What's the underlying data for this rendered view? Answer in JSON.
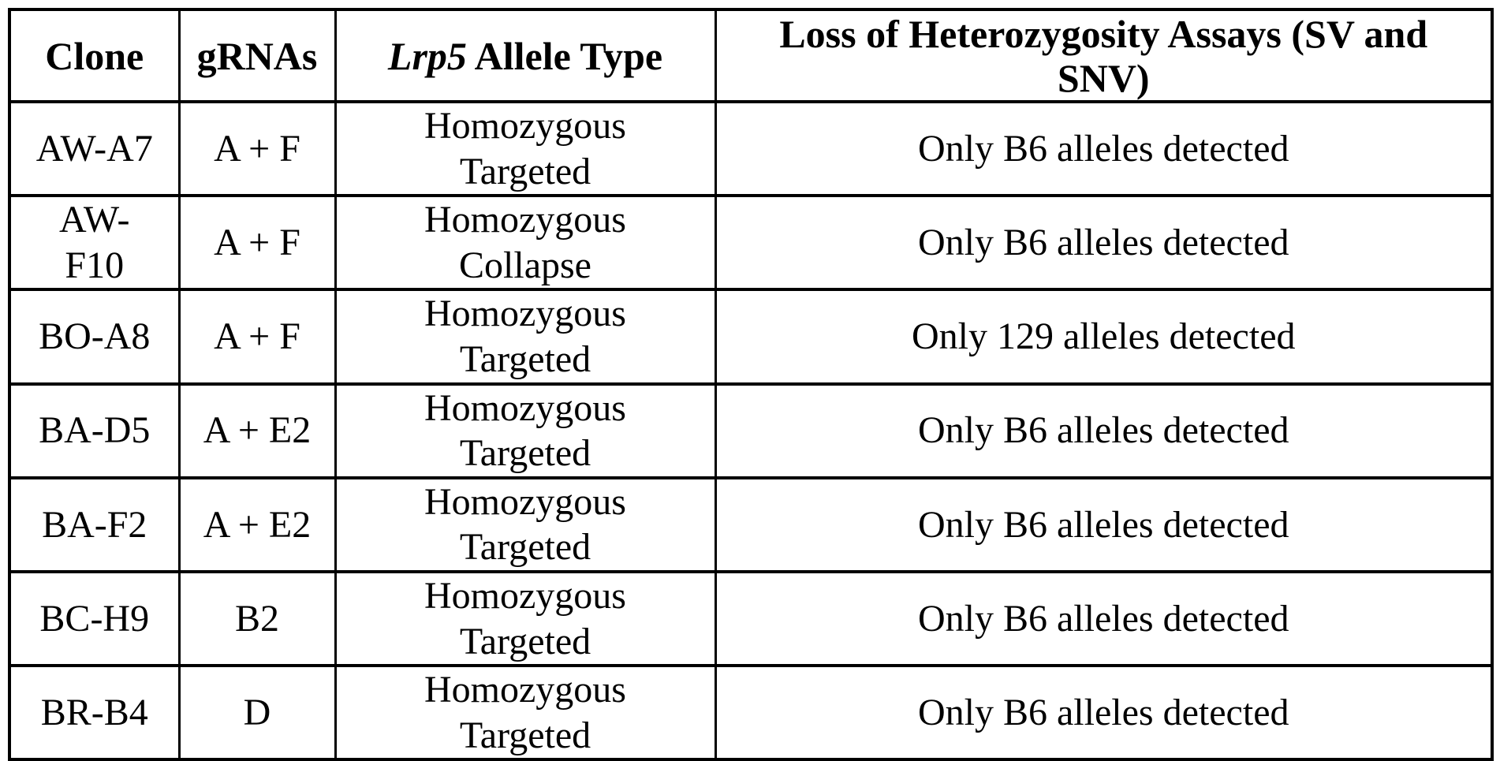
{
  "table": {
    "header": {
      "clone": "Clone",
      "grnas": "gRNAs",
      "allele_type_italic": "Lrp5",
      "allele_type_rest": " Allele Type",
      "loh_assays": "Loss of Heterozygosity Assays (SV and\nSNV)"
    },
    "rows": [
      {
        "clone": "AW-A7",
        "grnas": "A + F",
        "allele_type": "Homozygous\nTargeted",
        "loh": "Only B6 alleles detected"
      },
      {
        "clone": "AW-\nF10",
        "grnas": "A + F",
        "allele_type": "Homozygous\nCollapse",
        "loh": "Only B6 alleles detected"
      },
      {
        "clone": "BO-A8",
        "grnas": "A + F",
        "allele_type": "Homozygous\nTargeted",
        "loh": "Only 129 alleles detected"
      },
      {
        "clone": "BA-D5",
        "grnas": "A + E2",
        "allele_type": "Homozygous\nTargeted",
        "loh": "Only B6 alleles detected"
      },
      {
        "clone": "BA-F2",
        "grnas": "A + E2",
        "allele_type": "Homozygous\nTargeted",
        "loh": "Only B6 alleles detected"
      },
      {
        "clone": "BC-H9",
        "grnas": "B2",
        "allele_type": "Homozygous\nTargeted",
        "loh": "Only B6 alleles detected"
      },
      {
        "clone": "BR-B4",
        "grnas": "D",
        "allele_type": "Homozygous\nTargeted",
        "loh": "Only B6 alleles detected"
      }
    ],
    "colors": {
      "border": "#000000",
      "background": "#ffffff",
      "text": "#000000"
    }
  }
}
